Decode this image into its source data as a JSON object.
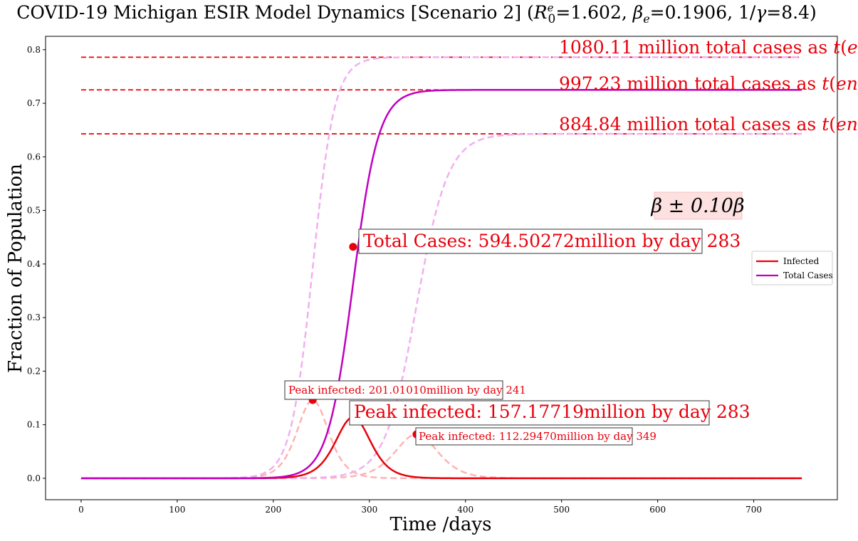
{
  "chart_data": {
    "type": "line",
    "title_parts": {
      "prefix": "COVID-19 Michigan ESIR Model Dynamics [Scenario 2] (",
      "r0": "R",
      "r0_sup": "e",
      "r0_sub": "0",
      "r0_val": "=1.602, ",
      "beta": "β",
      "beta_sub": "e",
      "beta_val": "=0.1906, 1/",
      "gamma": "γ",
      "gamma_val": "=8.4)"
    },
    "xlabel": "Time /days",
    "ylabel": "Fraction of Population",
    "xlim": [
      -37,
      787
    ],
    "ylim": [
      -0.04,
      0.825
    ],
    "xticks": [
      0,
      100,
      200,
      300,
      400,
      500,
      600,
      700
    ],
    "yticks": [
      0.0,
      0.1,
      0.2,
      0.3,
      0.4,
      0.5,
      0.6,
      0.7,
      0.8
    ],
    "t_end": 750,
    "colors": {
      "infected": "#e8000b",
      "total": "#c000c0",
      "infected_faint": "#ffb3b3",
      "total_faint": "#f0b0f0",
      "dashed": "#e8000b"
    },
    "series": [
      {
        "name": "Infected",
        "kind": "infected",
        "peak_day": 283,
        "peak": 0.114,
        "width": 24.5,
        "main": true
      },
      {
        "name": "Total Cases",
        "kind": "total",
        "mid_day": 283,
        "final": 0.725,
        "width": 13.3,
        "main": true
      },
      {
        "kind": "infected",
        "peak_day": 241,
        "peak": 0.146,
        "width": 22,
        "main": false
      },
      {
        "kind": "infected",
        "peak_day": 349,
        "peak": 0.082,
        "width": 30,
        "main": false
      },
      {
        "kind": "total",
        "mid_day": 241,
        "final": 0.786,
        "width": 11.5,
        "main": false
      },
      {
        "kind": "total",
        "mid_day": 349,
        "final": 0.643,
        "width": 16.5,
        "main": false
      }
    ],
    "hlines": [
      {
        "y": 0.786,
        "label_num": "1080.11 million total cases as ",
        "label_t": "t",
        "label_end": "end"
      },
      {
        "y": 0.725,
        "label_num": "997.23 million total cases as ",
        "label_t": "t",
        "label_end": "end"
      },
      {
        "y": 0.643,
        "label_num": "884.84 million total cases as ",
        "label_t": "t",
        "label_end": "end"
      }
    ],
    "markers": [
      {
        "x": 283,
        "y": 0.432
      },
      {
        "x": 241,
        "y": 0.146
      },
      {
        "x": 349,
        "y": 0.082
      }
    ],
    "annotations": {
      "total_cases": "Total Cases: 594.50272million by day 283",
      "peak_main": "Peak infected: 157.17719million by day 283",
      "peak_early": "Peak infected: 201.01010million by day 241",
      "peak_late": "Peak infected: 112.29470million by day 349",
      "beta_range": "β ± 0.10β"
    },
    "legend": {
      "placement": "center-right",
      "entries": [
        {
          "label": "Infected",
          "color": "#e8000b"
        },
        {
          "label": "Total Cases",
          "color": "#c000c0"
        }
      ]
    },
    "grid": false
  }
}
